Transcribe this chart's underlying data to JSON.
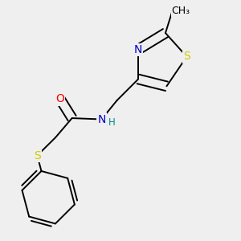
{
  "background_color": "#efefef",
  "atom_colors": {
    "C": "#000000",
    "N": "#0000cc",
    "O": "#ff0000",
    "S": "#cccc00",
    "H": "#008888"
  },
  "line_color": "#000000",
  "line_width": 1.4,
  "figsize": [
    3.0,
    3.0
  ],
  "dpi": 100,
  "xlim": [
    0.0,
    1.0
  ],
  "ylim": [
    0.0,
    1.0
  ]
}
